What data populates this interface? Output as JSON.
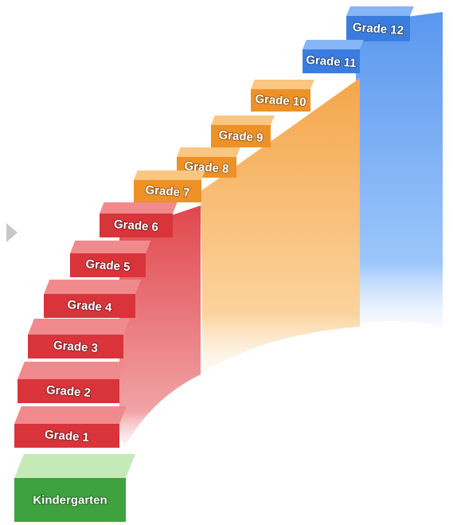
{
  "steps": [
    "Kindergarten",
    "Grade 1",
    "Grade 2",
    "Grade 3",
    "Grade 4",
    "Grade 5",
    "Grade 6",
    "Grade 7",
    "Grade 8",
    "Grade 9",
    "Grade 10",
    "Grade 11",
    "Grade 12"
  ]
}
